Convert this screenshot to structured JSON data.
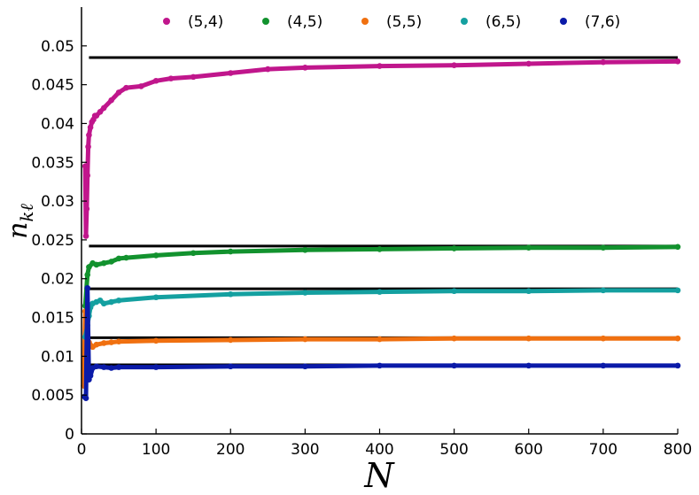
{
  "chart_data": {
    "type": "scatter",
    "title": "",
    "xlabel": "N",
    "ylabel": "n_{kℓ}",
    "xlim": [
      0,
      800
    ],
    "ylim": [
      0,
      0.055
    ],
    "xticks": [
      "0",
      "100",
      "200",
      "300",
      "400",
      "500",
      "600",
      "700",
      "800"
    ],
    "yticks": [
      "0",
      "0.005",
      "0.01",
      "0.015",
      "0.02",
      "0.025",
      "0.03",
      "0.035",
      "0.04",
      "0.045",
      "0.05"
    ],
    "grid": false,
    "legend_position": "top",
    "series": [
      {
        "name": "(5,4)",
        "color": "#c0168c",
        "reference_line": 0.0485,
        "x": [
          5,
          6,
          7,
          8,
          9,
          10,
          12,
          14,
          16,
          18,
          20,
          25,
          30,
          40,
          50,
          60,
          80,
          100,
          120,
          150,
          200,
          250,
          300,
          400,
          500,
          600,
          700,
          800
        ],
        "y": [
          0.0345,
          0.0255,
          0.029,
          0.0333,
          0.037,
          0.0385,
          0.0395,
          0.0402,
          0.0405,
          0.041,
          0.041,
          0.0415,
          0.042,
          0.043,
          0.044,
          0.0446,
          0.0448,
          0.0455,
          0.0458,
          0.046,
          0.0465,
          0.047,
          0.0472,
          0.0474,
          0.0475,
          0.0477,
          0.0479,
          0.048
        ]
      },
      {
        "name": "(4,5)",
        "color": "#12922e",
        "reference_line": 0.0242,
        "x": [
          5,
          8,
          10,
          15,
          20,
          30,
          40,
          50,
          60,
          100,
          150,
          200,
          300,
          400,
          500,
          600,
          700,
          800
        ],
        "y": [
          0.0165,
          0.0205,
          0.0215,
          0.022,
          0.0218,
          0.022,
          0.0222,
          0.0226,
          0.0227,
          0.023,
          0.0233,
          0.0235,
          0.0237,
          0.0238,
          0.0239,
          0.024,
          0.024,
          0.0241
        ]
      },
      {
        "name": "(5,5)",
        "color": "#f07010",
        "reference_line": 0.0124,
        "x": [
          3,
          5,
          8,
          10,
          15,
          20,
          30,
          40,
          50,
          100,
          200,
          300,
          400,
          500,
          600,
          700,
          800
        ],
        "y": [
          0.0062,
          0.0158,
          0.0105,
          0.0118,
          0.0112,
          0.0115,
          0.0117,
          0.0118,
          0.0119,
          0.012,
          0.0121,
          0.0122,
          0.0122,
          0.0123,
          0.0123,
          0.0123,
          0.0123
        ]
      },
      {
        "name": "(6,5)",
        "color": "#14a0a0",
        "reference_line": 0.0187,
        "x": [
          5,
          8,
          10,
          12,
          15,
          20,
          25,
          30,
          40,
          50,
          100,
          200,
          300,
          400,
          500,
          600,
          700,
          800
        ],
        "y": [
          0.0125,
          0.014,
          0.0152,
          0.0163,
          0.0168,
          0.017,
          0.0172,
          0.0168,
          0.017,
          0.0172,
          0.0176,
          0.018,
          0.0182,
          0.0183,
          0.0184,
          0.0184,
          0.0185,
          0.0185
        ]
      },
      {
        "name": "(7,6)",
        "color": "#0a1aa8",
        "reference_line": 0.0089,
        "x": [
          4,
          6,
          8,
          10,
          12,
          15,
          20,
          30,
          40,
          50,
          100,
          200,
          300,
          400,
          500,
          600,
          700,
          800
        ],
        "y": [
          0.0048,
          0.0046,
          0.0188,
          0.007,
          0.0075,
          0.0085,
          0.0087,
          0.0086,
          0.0085,
          0.0086,
          0.0086,
          0.0087,
          0.0087,
          0.0088,
          0.0088,
          0.0088,
          0.0088,
          0.0088
        ]
      }
    ]
  }
}
